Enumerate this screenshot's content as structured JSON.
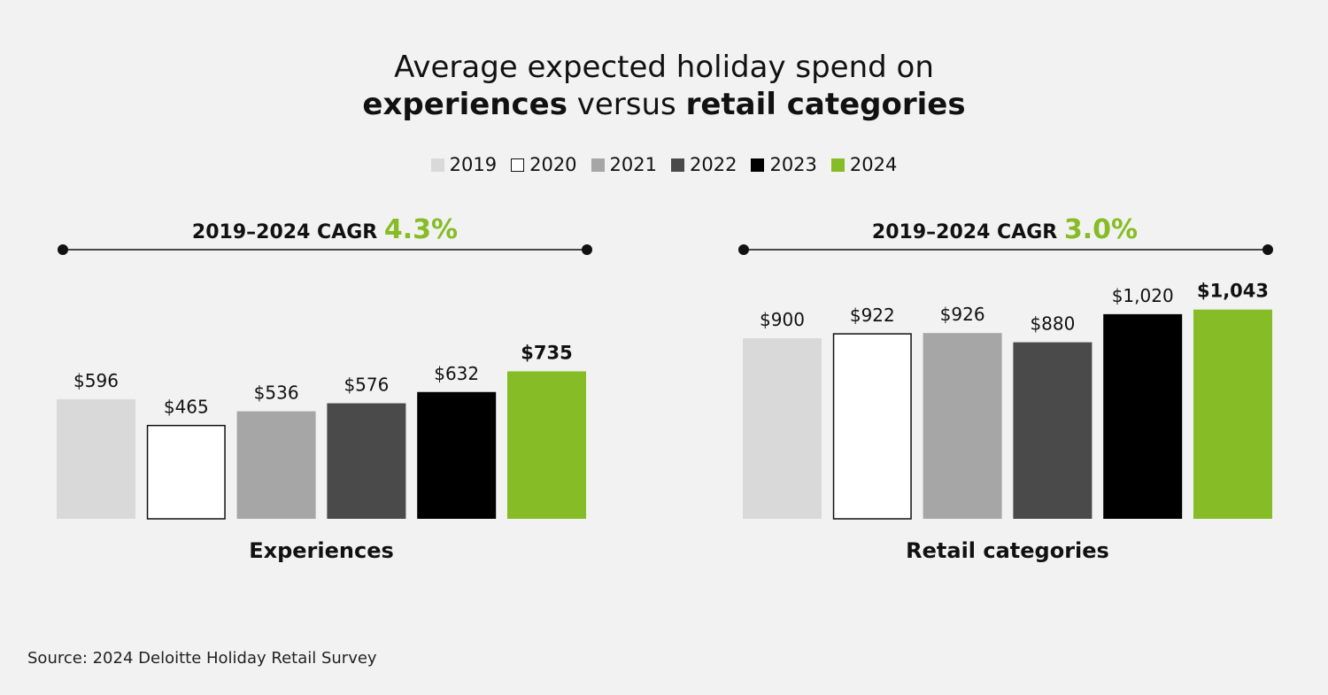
{
  "title": {
    "line1": "Average expected holiday spend on",
    "line2_bold_a": "experiences",
    "line2_mid": " versus ",
    "line2_bold_b": "retail categories"
  },
  "source": "Source: 2024 Deloitte Holiday Retail Survey",
  "colors": {
    "2019": "#d9d9d9",
    "2020": "#ffffff",
    "2021": "#a6a6a6",
    "2022": "#4a4a4a",
    "2023": "#000000",
    "2024": "#86bc25",
    "background": "#f2f2f2"
  },
  "chart_data": [
    {
      "type": "bar",
      "title": "Experiences",
      "cagr_label": "2019–2024 CAGR",
      "cagr_value": "4.3%",
      "categories": [
        "2019",
        "2020",
        "2021",
        "2022",
        "2023",
        "2024"
      ],
      "values": [
        596,
        465,
        536,
        576,
        632,
        735
      ],
      "value_labels": [
        "$596",
        "$465",
        "$536",
        "$576",
        "$632",
        "$735"
      ],
      "highlight_index": 5,
      "legend": [
        "2019",
        "2020",
        "2021",
        "2022",
        "2023",
        "2024"
      ],
      "legend_position": "top-center"
    },
    {
      "type": "bar",
      "title": "Retail categories",
      "cagr_label": "2019–2024 CAGR",
      "cagr_value": "3.0%",
      "categories": [
        "2019",
        "2020",
        "2021",
        "2022",
        "2023",
        "2024"
      ],
      "values": [
        900,
        922,
        926,
        880,
        1020,
        1043
      ],
      "value_labels": [
        "$900",
        "$922",
        "$926",
        "$880",
        "$1,020",
        "$1,043"
      ],
      "highlight_index": 5
    }
  ]
}
